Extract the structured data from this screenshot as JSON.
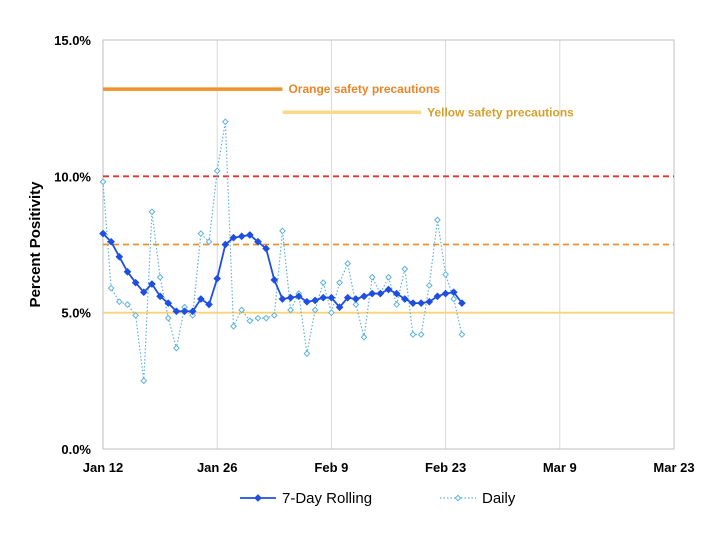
{
  "chart_data": {
    "type": "line",
    "ylabel": "Percent Positivity",
    "xlabel": "",
    "ylim": [
      0,
      15
    ],
    "xlim": [
      "2021-01-12",
      "2021-03-23"
    ],
    "x_tick_labels": [
      "Jan 12",
      "Jan 26",
      "Feb 9",
      "Feb 23",
      "Mar 9",
      "Mar 23"
    ],
    "y_tick_labels": [
      "0.0%",
      "5.0%",
      "10.0%",
      "15.0%"
    ],
    "y_ticks": [
      0,
      5,
      10,
      15
    ],
    "grid": "vertical",
    "legend_position": "bottom",
    "series": [
      {
        "name": "7-Day Rolling",
        "style": "solid-diamond",
        "color": "#1F4FE0",
        "x": [
          "2021-01-12",
          "2021-01-13",
          "2021-01-14",
          "2021-01-15",
          "2021-01-16",
          "2021-01-17",
          "2021-01-18",
          "2021-01-19",
          "2021-01-20",
          "2021-01-21",
          "2021-01-22",
          "2021-01-23",
          "2021-01-24",
          "2021-01-25",
          "2021-01-26",
          "2021-01-27",
          "2021-01-28",
          "2021-01-29",
          "2021-01-30",
          "2021-01-31",
          "2021-02-01",
          "2021-02-02",
          "2021-02-03",
          "2021-02-04",
          "2021-02-05",
          "2021-02-06",
          "2021-02-07",
          "2021-02-08",
          "2021-02-09",
          "2021-02-10",
          "2021-02-11",
          "2021-02-12",
          "2021-02-13",
          "2021-02-14",
          "2021-02-15",
          "2021-02-16",
          "2021-02-17",
          "2021-02-18",
          "2021-02-19",
          "2021-02-20",
          "2021-02-21",
          "2021-02-22",
          "2021-02-23",
          "2021-02-24",
          "2021-02-25"
        ],
        "values": [
          7.9,
          7.6,
          7.05,
          6.5,
          6.1,
          5.75,
          6.05,
          5.6,
          5.35,
          5.05,
          5.05,
          5.05,
          5.5,
          5.3,
          6.25,
          7.5,
          7.75,
          7.8,
          7.85,
          7.6,
          7.35,
          6.2,
          5.5,
          5.55,
          5.6,
          5.4,
          5.45,
          5.55,
          5.55,
          5.2,
          5.55,
          5.5,
          5.6,
          5.7,
          5.7,
          5.85,
          5.7,
          5.5,
          5.35,
          5.35,
          5.4,
          5.6,
          5.7,
          5.75,
          5.35
        ]
      },
      {
        "name": "Daily",
        "style": "dotted-open-diamond",
        "color": "#5FB3D9",
        "x": [
          "2021-01-12",
          "2021-01-13",
          "2021-01-14",
          "2021-01-15",
          "2021-01-16",
          "2021-01-17",
          "2021-01-18",
          "2021-01-19",
          "2021-01-20",
          "2021-01-21",
          "2021-01-22",
          "2021-01-23",
          "2021-01-24",
          "2021-01-25",
          "2021-01-26",
          "2021-01-27",
          "2021-01-28",
          "2021-01-29",
          "2021-01-30",
          "2021-01-31",
          "2021-02-01",
          "2021-02-02",
          "2021-02-03",
          "2021-02-04",
          "2021-02-05",
          "2021-02-06",
          "2021-02-07",
          "2021-02-08",
          "2021-02-09",
          "2021-02-10",
          "2021-02-11",
          "2021-02-12",
          "2021-02-13",
          "2021-02-14",
          "2021-02-15",
          "2021-02-16",
          "2021-02-17",
          "2021-02-18",
          "2021-02-19",
          "2021-02-20",
          "2021-02-21",
          "2021-02-22",
          "2021-02-23",
          "2021-02-24",
          "2021-02-25"
        ],
        "values": [
          9.8,
          5.9,
          5.4,
          5.3,
          4.9,
          2.5,
          8.7,
          6.3,
          4.8,
          3.7,
          5.2,
          4.9,
          7.9,
          7.6,
          10.2,
          12.0,
          4.5,
          5.1,
          4.7,
          4.8,
          4.8,
          4.9,
          8.0,
          5.1,
          5.7,
          3.5,
          5.1,
          6.1,
          5.0,
          6.1,
          6.8,
          5.3,
          4.1,
          6.3,
          5.7,
          6.3,
          5.3,
          6.6,
          4.2,
          4.2,
          6.0,
          8.4,
          6.4,
          5.5,
          4.2
        ]
      }
    ],
    "threshold_lines": [
      {
        "y": 10.0,
        "color": "#E0342C",
        "style": "dashed"
      },
      {
        "y": 7.5,
        "color": "#E8922E",
        "style": "dashed"
      },
      {
        "y": 5.0,
        "color": "#F7D37A",
        "style": "solid"
      }
    ],
    "annotations": [
      {
        "label": "Orange safety precautions",
        "x_start": "2021-01-12",
        "x_end": "2021-02-03",
        "y": 13.2,
        "color": "#F0922B",
        "text_color": "#E8862A"
      },
      {
        "label": "Yellow safety precautions",
        "x_start": "2021-02-03",
        "x_end": "2021-02-20",
        "y": 12.35,
        "color": "#F9D98A",
        "text_color": "#D4A02E"
      }
    ]
  }
}
